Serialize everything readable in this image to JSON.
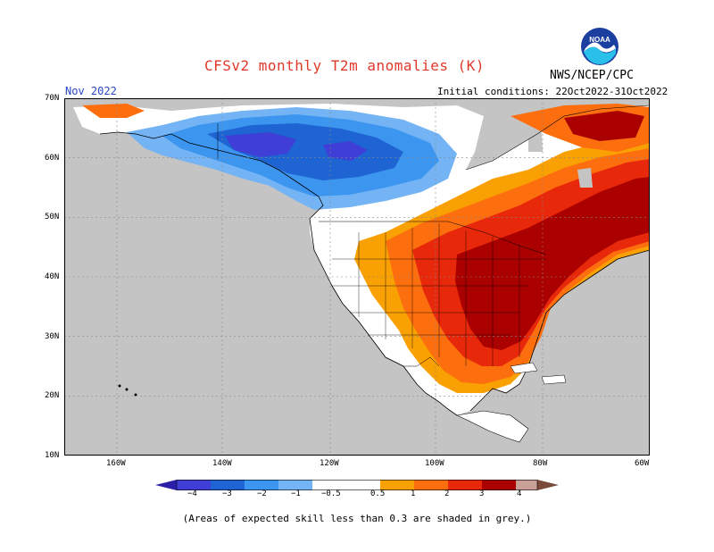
{
  "header": {
    "title": "CFSv2 monthly T2m anomalies (K)",
    "agency": "NWS/NCEP/CPC",
    "logo_text": "NOAA",
    "month": "Nov 2022",
    "initial_conditions": "Initial conditions: 22Oct2022-31Oct2022"
  },
  "map": {
    "lat_labels": [
      "70N",
      "60N",
      "50N",
      "40N",
      "30N",
      "20N",
      "10N"
    ],
    "lon_labels": [
      "160W",
      "140W",
      "120W",
      "100W",
      "80W",
      "60W"
    ],
    "colors": {
      "ocean_grey": "#c4c4c4",
      "land_white": "#ffffff",
      "coast": "#000000"
    }
  },
  "legend": {
    "labels": [
      "−4",
      "−3",
      "−2",
      "−1",
      "−0.5",
      "0.5",
      "1",
      "2",
      "3",
      "4"
    ],
    "colors": [
      "#2b1fa8",
      "#3f3fd8",
      "#1e64d2",
      "#3c96f0",
      "#74b4f4",
      "#ffffff",
      "#f9a002",
      "#fd6e0e",
      "#e8280a",
      "#aa0000",
      "#c8a096",
      "#7a4a3a"
    ]
  },
  "footnote": "(Areas of expected skill less than 0.3 are shaded in grey.)"
}
